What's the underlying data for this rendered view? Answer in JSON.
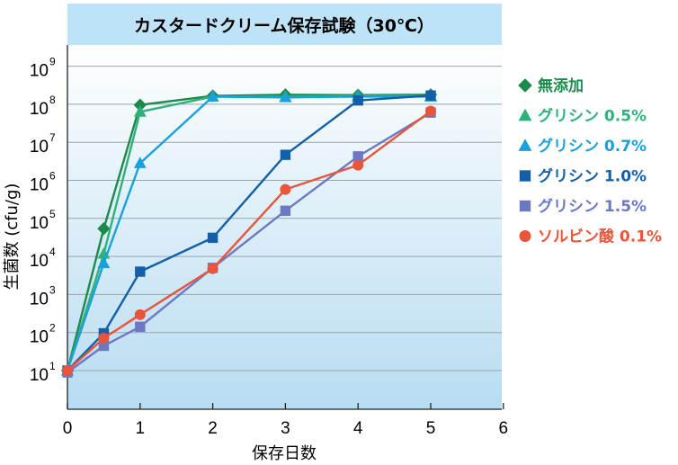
{
  "chart_data": {
    "type": "line",
    "title": "カスタードクリーム保存試験（30℃）",
    "xlabel": "保存日数",
    "ylabel": "生菌数 (cfu/g)",
    "y_scale": "log10",
    "x_range": [
      0,
      6
    ],
    "y_range": [
      1,
      10
    ],
    "x_ticks": [
      "0",
      "1",
      "2",
      "3",
      "4",
      "5",
      "6"
    ],
    "y_tick_base": "10",
    "y_tick_exponents": [
      "1",
      "2",
      "3",
      "4",
      "5",
      "6",
      "7",
      "8",
      "9"
    ],
    "grid": "horizontal",
    "legend_position": "right",
    "series": [
      {
        "name": "無添加",
        "color": "#1d8a4c",
        "marker": "diamond",
        "points": [
          [
            0,
            1.0
          ],
          [
            0.5,
            4.73
          ],
          [
            1,
            7.98
          ],
          [
            2,
            8.22
          ],
          [
            3,
            8.25
          ],
          [
            4,
            8.24
          ],
          [
            5,
            8.25
          ]
        ]
      },
      {
        "name": "グリシン 0.5%",
        "color": "#2fb27a",
        "marker": "triangle",
        "points": [
          [
            0,
            1.0
          ],
          [
            0.5,
            4.07
          ],
          [
            1,
            7.8
          ],
          [
            2,
            8.2
          ],
          [
            3,
            8.2
          ],
          [
            4,
            8.22
          ],
          [
            5,
            8.22
          ]
        ]
      },
      {
        "name": "グリシン 0.7%",
        "color": "#1aa0db",
        "marker": "triangle",
        "points": [
          [
            0,
            1.0
          ],
          [
            0.5,
            3.82
          ],
          [
            1,
            6.45
          ],
          [
            2,
            8.2
          ],
          [
            3,
            8.18
          ],
          [
            4,
            8.2
          ],
          [
            5,
            8.2
          ]
        ]
      },
      {
        "name": "グリシン 1.0%",
        "color": "#1460a8",
        "marker": "square",
        "points": [
          [
            0,
            1.0
          ],
          [
            0.5,
            1.98
          ],
          [
            1,
            3.6
          ],
          [
            2,
            4.49
          ],
          [
            3,
            6.67
          ],
          [
            4,
            8.1
          ],
          [
            5,
            8.23
          ]
        ]
      },
      {
        "name": "グリシン 1.5%",
        "color": "#6d78c3",
        "marker": "square",
        "points": [
          [
            0,
            0.95
          ],
          [
            0.5,
            1.65
          ],
          [
            1,
            2.15
          ],
          [
            2,
            3.7
          ],
          [
            3,
            5.2
          ],
          [
            4,
            6.63
          ],
          [
            5,
            7.78
          ]
        ]
      },
      {
        "name": "ソルビン酸 0.1%",
        "color": "#e8553a",
        "marker": "circle",
        "points": [
          [
            0,
            1.0
          ],
          [
            0.5,
            1.85
          ],
          [
            1,
            2.47
          ],
          [
            2,
            3.68
          ],
          [
            3,
            5.76
          ],
          [
            4,
            6.4
          ],
          [
            5,
            7.82
          ]
        ]
      }
    ]
  }
}
